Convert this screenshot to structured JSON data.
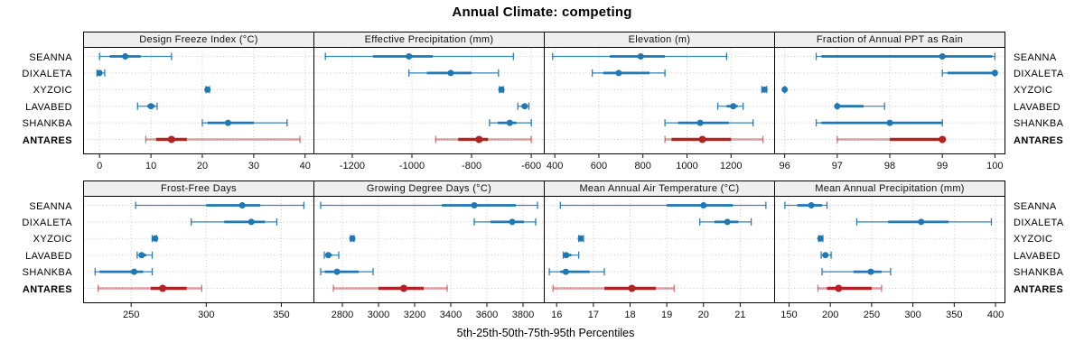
{
  "title": "Annual Climate: competing",
  "xlabel": "5th-25th-50th-75th-95th Percentiles",
  "categories": [
    "SEANNA",
    "DIXALETA",
    "XYZOIC",
    "LAVABED",
    "SHANKBA",
    "ANTARES"
  ],
  "highlight_category": "ANTARES",
  "colors": {
    "series": "#1f77b4",
    "highlight": "#b22222",
    "grid": "#c9c9c9",
    "header_bg": "#efefef",
    "border": "#000000"
  },
  "chart_data": {
    "type": "dotplot-percentiles",
    "note": "each series value array is [p5, p25, p50, p75, p95]",
    "layout": {
      "rows": 2,
      "cols": 4,
      "grid": "dotted",
      "category_labels": "both-sides"
    },
    "panels": [
      {
        "title": "Design Freeze Index (°C)",
        "slug": "design-freeze-index",
        "domain": [
          -3.2,
          41.8
        ],
        "ticks": [
          0,
          10,
          20,
          30,
          40
        ],
        "series": {
          "SEANNA": [
            0,
            2,
            5,
            8,
            14
          ],
          "DIXALETA": [
            -0.5,
            -0.2,
            0,
            0.4,
            1
          ],
          "XYZOIC": [
            20.7,
            20.9,
            21,
            21.2,
            21.4
          ],
          "LAVABED": [
            7.4,
            9.3,
            10,
            10.8,
            11.2
          ],
          "SHANKBA": [
            20,
            21,
            25,
            30,
            36.5
          ],
          "ANTARES": [
            9,
            11,
            14,
            17,
            39
          ]
        }
      },
      {
        "title": "Effective Precipitation (mm)",
        "slug": "effective-precipitation",
        "domain": [
          -1330,
          -555
        ],
        "ticks": [
          -1200,
          -1000,
          -800,
          -600
        ],
        "series": {
          "SEANNA": [
            -1290,
            -1130,
            -1010,
            -930,
            -660
          ],
          "DIXALETA": [
            -1010,
            -950,
            -870,
            -800,
            -710
          ],
          "XYZOIC": [
            -707,
            -703,
            -700,
            -697,
            -693
          ],
          "LAVABED": [
            -645,
            -633,
            -622,
            -616,
            -608
          ],
          "SHANKBA": [
            -740,
            -712,
            -672,
            -650,
            -600
          ],
          "ANTARES": [
            -920,
            -845,
            -775,
            -745,
            -600
          ]
        }
      },
      {
        "title": "Elevation (m)",
        "slug": "elevation",
        "domain": [
          350,
          1400
        ],
        "ticks": [
          400,
          600,
          800,
          1000,
          1200
        ],
        "series": {
          "SEANNA": [
            390,
            650,
            790,
            900,
            1180
          ],
          "DIXALETA": [
            570,
            620,
            690,
            830,
            900
          ],
          "XYZOIC": [
            1340,
            1346,
            1352,
            1357,
            1362
          ],
          "LAVABED": [
            1140,
            1180,
            1210,
            1230,
            1255
          ],
          "SHANKBA": [
            900,
            960,
            1060,
            1190,
            1300
          ],
          "ANTARES": [
            900,
            930,
            1070,
            1200,
            1345
          ]
        }
      },
      {
        "title": "Fraction of Annual PPT as Rain",
        "slug": "fraction-annual-ppt-as-rain",
        "domain": [
          95.8,
          100.2
        ],
        "ticks": [
          96,
          97,
          98,
          99,
          100
        ],
        "series": {
          "SEANNA": [
            96.6,
            96.7,
            99,
            99.95,
            100
          ],
          "DIXALETA": [
            99,
            99.1,
            100,
            100,
            100
          ],
          "XYZOIC": [
            96,
            96,
            96,
            96,
            96
          ],
          "LAVABED": [
            97,
            97,
            97,
            97.5,
            97.9
          ],
          "SHANKBA": [
            96.6,
            96.7,
            98,
            99,
            99
          ],
          "ANTARES": [
            97,
            98,
            99,
            99,
            99
          ]
        }
      },
      {
        "title": "Frost-Free Days",
        "slug": "frost-free-days",
        "domain": [
          218,
          372
        ],
        "ticks": [
          250,
          300,
          350
        ],
        "series": {
          "SEANNA": [
            253,
            300,
            324,
            336,
            365
          ],
          "DIXALETA": [
            290,
            312,
            330,
            339,
            347
          ],
          "XYZOIC": [
            264,
            265,
            266,
            266,
            267
          ],
          "LAVABED": [
            254,
            256,
            257,
            260,
            264
          ],
          "SHANKBA": [
            226,
            229,
            252,
            258,
            264
          ],
          "ANTARES": [
            228,
            263,
            271,
            287,
            297
          ]
        }
      },
      {
        "title": "Growing Degree Days (°C)",
        "slug": "growing-degree-days",
        "domain": [
          2640,
          3920
        ],
        "ticks": [
          2800,
          3000,
          3200,
          3400,
          3600,
          3800
        ],
        "series": {
          "SEANNA": [
            2680,
            3350,
            3530,
            3760,
            3880
          ],
          "DIXALETA": [
            3530,
            3620,
            3740,
            3805,
            3870
          ],
          "XYZOIC": [
            2845,
            2850,
            2855,
            2860,
            2865
          ],
          "LAVABED": [
            2700,
            2712,
            2722,
            2742,
            2780
          ],
          "SHANKBA": [
            2680,
            2702,
            2770,
            2890,
            2970
          ],
          "ANTARES": [
            2750,
            3000,
            3140,
            3250,
            3380
          ]
        }
      },
      {
        "title": "Mean Annual Air Temperature (°C)",
        "slug": "mean-annual-air-temperature",
        "domain": [
          15.65,
          21.95
        ],
        "ticks": [
          16,
          17,
          18,
          19,
          20,
          21
        ],
        "series": {
          "SEANNA": [
            16.1,
            19.0,
            20.0,
            20.8,
            21.7
          ],
          "DIXALETA": [
            19.9,
            20.3,
            20.65,
            20.95,
            21.3
          ],
          "XYZOIC": [
            16.6,
            16.63,
            16.66,
            16.7,
            16.73
          ],
          "LAVABED": [
            16.18,
            16.22,
            16.26,
            16.4,
            16.6
          ],
          "SHANKBA": [
            15.8,
            16.1,
            16.25,
            16.9,
            17.3
          ],
          "ANTARES": [
            15.9,
            17.3,
            18.05,
            18.7,
            19.2
          ]
        }
      },
      {
        "title": "Mean Annual Precipitation (mm)",
        "slug": "mean-annual-precipitation",
        "domain": [
          132,
          412
        ],
        "ticks": [
          150,
          200,
          250,
          300,
          350,
          400
        ],
        "series": {
          "SEANNA": [
            145,
            160,
            177,
            190,
            196
          ],
          "DIXALETA": [
            232,
            270,
            310,
            343,
            395
          ],
          "XYZOIC": [
            186,
            187,
            188,
            190,
            191
          ],
          "LAVABED": [
            189,
            192,
            194,
            197,
            201
          ],
          "SHANKBA": [
            190,
            228,
            249,
            262,
            273
          ],
          "ANTARES": [
            185,
            196,
            210,
            250,
            262
          ]
        }
      }
    ]
  }
}
